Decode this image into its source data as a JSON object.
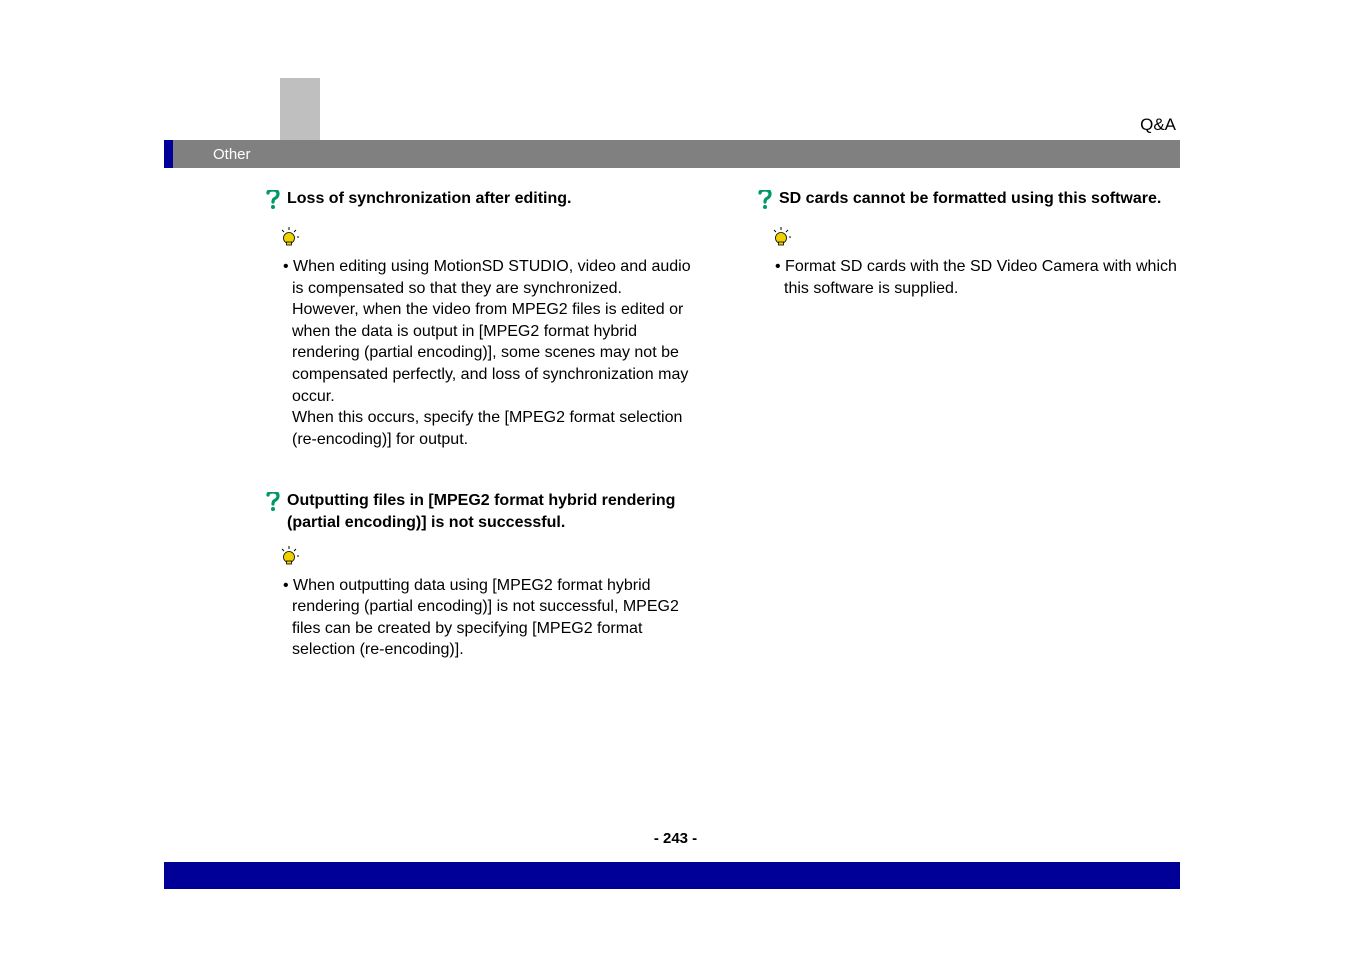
{
  "header": {
    "category": "Q&A"
  },
  "section": {
    "title": "Other",
    "accent_color": "#000099",
    "bar_color": "#808080",
    "gray_block_color": "#bfbfbf"
  },
  "left_column": [
    {
      "question": "Loss of synchronization after editing.",
      "answer_bullet": "• ",
      "answer": "When editing using MotionSD STUDIO, video and audio is compensated so that they are synchronized. However, when the video from MPEG2 files is edited or when the data is output in [MPEG2 format hybrid rendering (partial encoding)], some scenes may not be compensated perfectly, and loss of synchronization may occur.\nWhen this occurs, specify the [MPEG2 format selection (re-encoding)] for output."
    },
    {
      "question": " Outputting files in [MPEG2 format hybrid rendering (partial encoding)] is not successful.",
      "answer_bullet": "• ",
      "answer": "When outputting data using [MPEG2 format hybrid rendering (partial encoding)] is not successful, MPEG2 files can be created by specifying [MPEG2 format selection (re-encoding)]."
    }
  ],
  "right_column": [
    {
      "question": " SD cards cannot be formatted using this software.",
      "answer_bullet": "• ",
      "answer": "Format SD cards with the SD Video Camera with which this software is supplied."
    }
  ],
  "footer": {
    "page_number": "- 243 -",
    "bar_color": "#000099"
  },
  "icons": {
    "question_color": "#009966",
    "bulb_color": "#f0d000"
  }
}
